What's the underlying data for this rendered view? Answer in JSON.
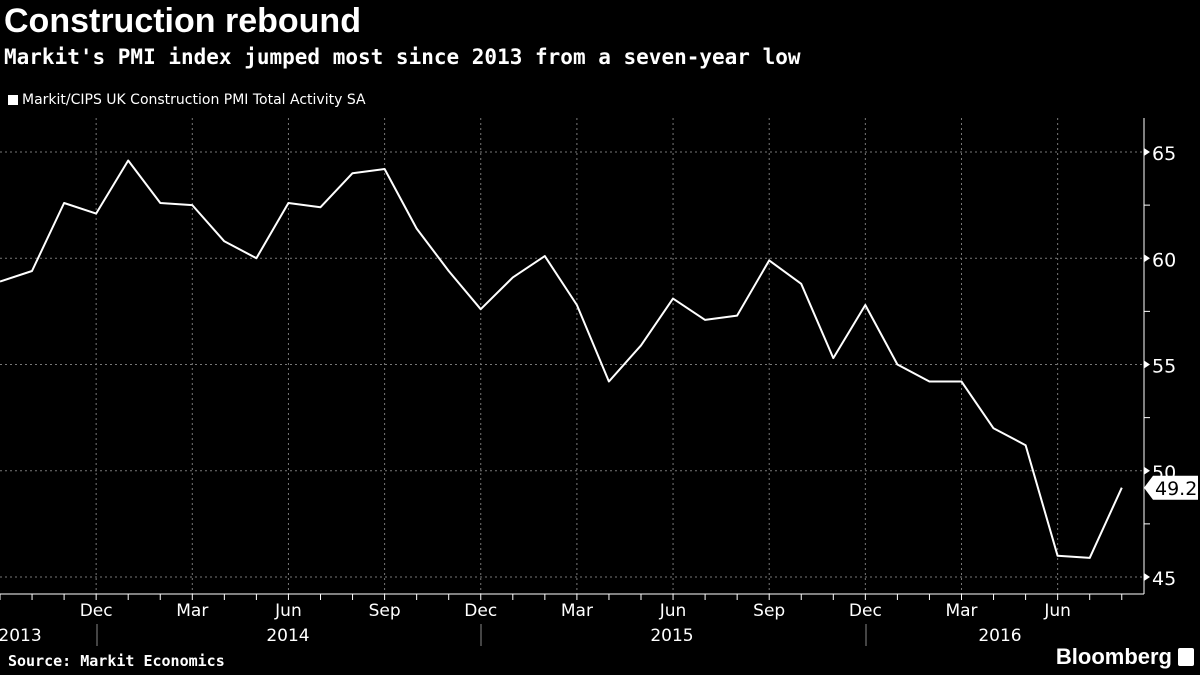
{
  "chart_data": {
    "type": "line",
    "title": "Construction rebound",
    "subtitle": "Markit's PMI index jumped most since 2013 from a seven-year low",
    "series": [
      {
        "name": "Markit/CIPS UK Construction PMI Total Activity SA",
        "color": "#ffffff",
        "x": [
          "2013-09",
          "2013-10",
          "2013-11",
          "2013-12",
          "2014-01",
          "2014-02",
          "2014-03",
          "2014-04",
          "2014-05",
          "2014-06",
          "2014-07",
          "2014-08",
          "2014-09",
          "2014-10",
          "2014-11",
          "2014-12",
          "2015-01",
          "2015-02",
          "2015-03",
          "2015-04",
          "2015-05",
          "2015-06",
          "2015-07",
          "2015-08",
          "2015-09",
          "2015-10",
          "2015-11",
          "2015-12",
          "2016-01",
          "2016-02",
          "2016-03",
          "2016-04",
          "2016-05",
          "2016-06",
          "2016-07",
          "2016-08"
        ],
        "values": [
          58.9,
          59.4,
          62.6,
          62.1,
          64.6,
          62.6,
          62.5,
          60.8,
          60.0,
          62.6,
          62.4,
          64.0,
          64.2,
          61.4,
          59.4,
          57.6,
          59.1,
          60.1,
          57.8,
          54.2,
          55.9,
          58.1,
          57.1,
          57.3,
          59.9,
          58.8,
          55.3,
          57.8,
          55.0,
          54.2,
          54.2,
          52.0,
          51.2,
          46.0,
          45.9,
          49.2
        ]
      }
    ],
    "last_value_label": "49.2",
    "y_ticks": [
      "45",
      "50",
      "55",
      "60",
      "65"
    ],
    "ylim": [
      44.2,
      66.6
    ],
    "y_axis_side": "right",
    "x_month_labels": [
      {
        "month": "2013-12",
        "label": "Dec"
      },
      {
        "month": "2014-03",
        "label": "Mar"
      },
      {
        "month": "2014-06",
        "label": "Jun"
      },
      {
        "month": "2014-09",
        "label": "Sep"
      },
      {
        "month": "2014-12",
        "label": "Dec"
      },
      {
        "month": "2015-03",
        "label": "Mar"
      },
      {
        "month": "2015-06",
        "label": "Jun"
      },
      {
        "month": "2015-09",
        "label": "Sep"
      },
      {
        "month": "2015-12",
        "label": "Dec"
      },
      {
        "month": "2016-03",
        "label": "Mar"
      },
      {
        "month": "2016-06",
        "label": "Jun"
      }
    ],
    "x_year_labels": [
      "2013",
      "2014",
      "2015",
      "2016"
    ],
    "grid": true,
    "legend_placement": "top-left"
  },
  "source": "Source: Markit Economics",
  "brand": "Bloomberg"
}
